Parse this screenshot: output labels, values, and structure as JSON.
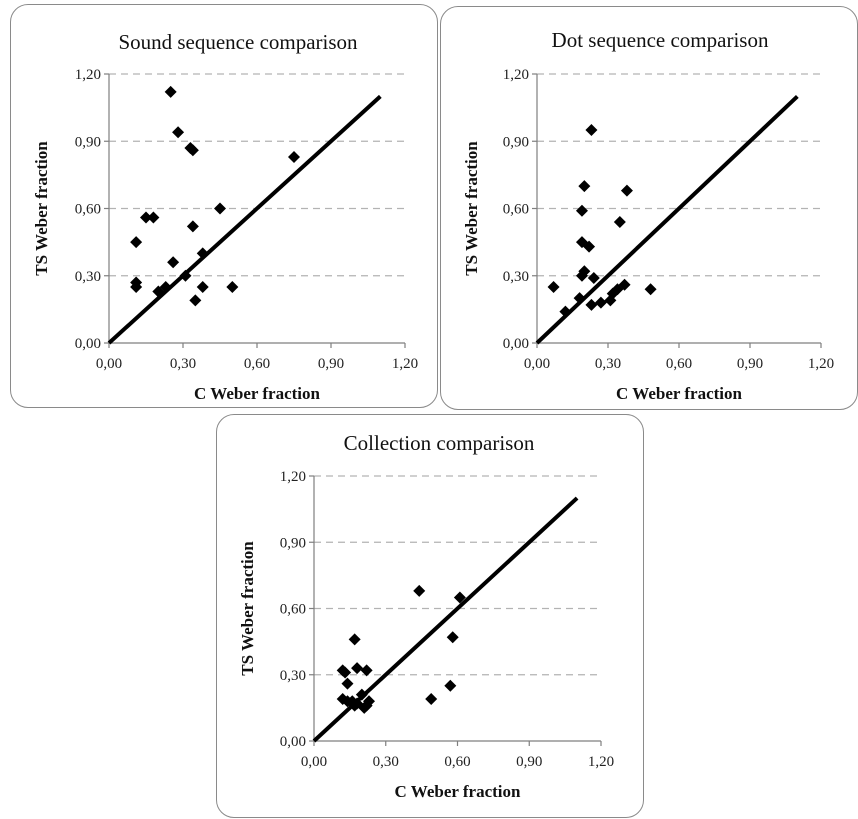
{
  "chart_data": [
    {
      "type": "scatter",
      "title": "Sound sequence comparison",
      "xlabel": "C Weber fraction",
      "ylabel": "TS Weber fraction",
      "xlim": [
        0,
        1.2
      ],
      "ylim": [
        0,
        1.2
      ],
      "xticks": [
        "0,00",
        "0,30",
        "0,60",
        "0,90",
        "1,20"
      ],
      "yticks": [
        "0,00",
        "0,30",
        "0,60",
        "0,90",
        "1,20"
      ],
      "grid": "horizontal dashed",
      "reference_line": {
        "x": [
          0,
          1.1
        ],
        "y": [
          0,
          1.1
        ]
      },
      "points": [
        {
          "x": 0.25,
          "y": 1.12
        },
        {
          "x": 0.28,
          "y": 0.94
        },
        {
          "x": 0.33,
          "y": 0.87
        },
        {
          "x": 0.34,
          "y": 0.86
        },
        {
          "x": 0.75,
          "y": 0.83
        },
        {
          "x": 0.45,
          "y": 0.6
        },
        {
          "x": 0.15,
          "y": 0.56
        },
        {
          "x": 0.18,
          "y": 0.56
        },
        {
          "x": 0.34,
          "y": 0.52
        },
        {
          "x": 0.11,
          "y": 0.45
        },
        {
          "x": 0.38,
          "y": 0.4
        },
        {
          "x": 0.26,
          "y": 0.36
        },
        {
          "x": 0.31,
          "y": 0.3
        },
        {
          "x": 0.11,
          "y": 0.27
        },
        {
          "x": 0.11,
          "y": 0.25
        },
        {
          "x": 0.23,
          "y": 0.25
        },
        {
          "x": 0.38,
          "y": 0.25
        },
        {
          "x": 0.5,
          "y": 0.25
        },
        {
          "x": 0.2,
          "y": 0.23
        },
        {
          "x": 0.35,
          "y": 0.19
        }
      ]
    },
    {
      "type": "scatter",
      "title": "Dot sequence comparison",
      "xlabel": "C Weber fraction",
      "ylabel": "TS Weber fraction",
      "xlim": [
        0,
        1.2
      ],
      "ylim": [
        0,
        1.2
      ],
      "xticks": [
        "0,00",
        "0,30",
        "0,60",
        "0,90",
        "1,20"
      ],
      "yticks": [
        "0,00",
        "0,30",
        "0,60",
        "0,90",
        "1,20"
      ],
      "grid": "horizontal dashed",
      "reference_line": {
        "x": [
          0,
          1.1
        ],
        "y": [
          0,
          1.1
        ]
      },
      "points": [
        {
          "x": 0.23,
          "y": 0.95
        },
        {
          "x": 0.2,
          "y": 0.7
        },
        {
          "x": 0.38,
          "y": 0.68
        },
        {
          "x": 0.19,
          "y": 0.59
        },
        {
          "x": 0.35,
          "y": 0.54
        },
        {
          "x": 0.19,
          "y": 0.45
        },
        {
          "x": 0.22,
          "y": 0.43
        },
        {
          "x": 0.2,
          "y": 0.32
        },
        {
          "x": 0.19,
          "y": 0.3
        },
        {
          "x": 0.24,
          "y": 0.29
        },
        {
          "x": 0.37,
          "y": 0.26
        },
        {
          "x": 0.07,
          "y": 0.25
        },
        {
          "x": 0.34,
          "y": 0.24
        },
        {
          "x": 0.48,
          "y": 0.24
        },
        {
          "x": 0.32,
          "y": 0.22
        },
        {
          "x": 0.18,
          "y": 0.2
        },
        {
          "x": 0.31,
          "y": 0.19
        },
        {
          "x": 0.27,
          "y": 0.18
        },
        {
          "x": 0.23,
          "y": 0.17
        },
        {
          "x": 0.12,
          "y": 0.14
        }
      ]
    },
    {
      "type": "scatter",
      "title": "Collection comparison",
      "xlabel": "C Weber fraction",
      "ylabel": "TS Weber fraction",
      "xlim": [
        0,
        1.2
      ],
      "ylim": [
        0,
        1.2
      ],
      "xticks": [
        "0,00",
        "0,30",
        "0,60",
        "0,90",
        "1,20"
      ],
      "yticks": [
        "0,00",
        "0,30",
        "0,60",
        "0,90",
        "1,20"
      ],
      "grid": "horizontal dashed",
      "reference_line": {
        "x": [
          0,
          1.1
        ],
        "y": [
          0,
          1.1
        ]
      },
      "points": [
        {
          "x": 0.44,
          "y": 0.68
        },
        {
          "x": 0.61,
          "y": 0.65
        },
        {
          "x": 0.58,
          "y": 0.47
        },
        {
          "x": 0.17,
          "y": 0.46
        },
        {
          "x": 0.18,
          "y": 0.33
        },
        {
          "x": 0.12,
          "y": 0.32
        },
        {
          "x": 0.13,
          "y": 0.31
        },
        {
          "x": 0.22,
          "y": 0.32
        },
        {
          "x": 0.14,
          "y": 0.26
        },
        {
          "x": 0.57,
          "y": 0.25
        },
        {
          "x": 0.2,
          "y": 0.21
        },
        {
          "x": 0.12,
          "y": 0.19
        },
        {
          "x": 0.49,
          "y": 0.19
        },
        {
          "x": 0.14,
          "y": 0.18
        },
        {
          "x": 0.18,
          "y": 0.17
        },
        {
          "x": 0.23,
          "y": 0.18
        },
        {
          "x": 0.17,
          "y": 0.16
        },
        {
          "x": 0.21,
          "y": 0.15
        },
        {
          "x": 0.22,
          "y": 0.16
        },
        {
          "x": 0.16,
          "y": 0.18
        }
      ]
    }
  ]
}
